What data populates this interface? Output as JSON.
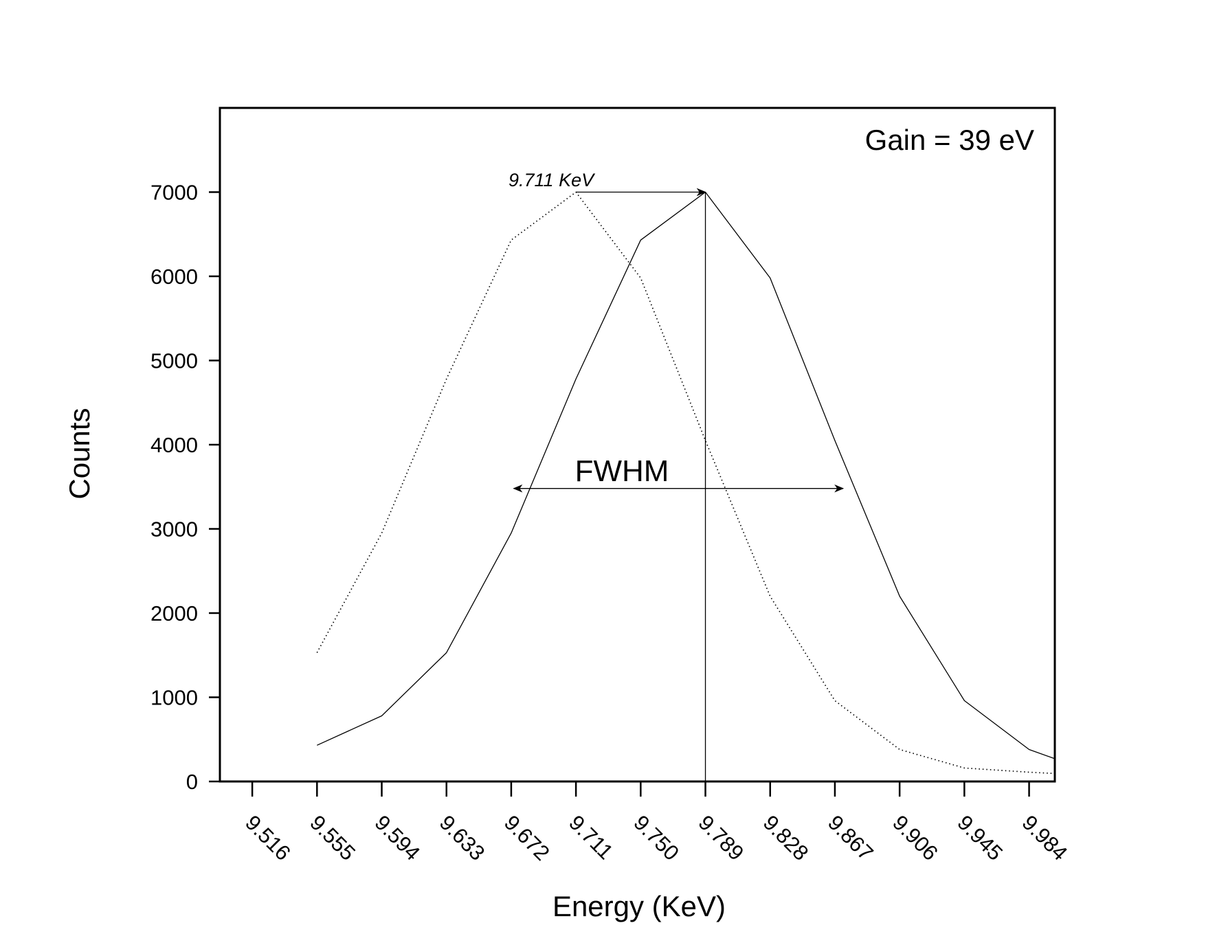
{
  "chart_data": {
    "type": "line",
    "xlabel": "Energy (KeV)",
    "ylabel": "Counts",
    "xlim": [
      9.4965,
      9.9995
    ],
    "ylim": [
      0,
      8000
    ],
    "x_ticks": [
      "9.516",
      "9.555",
      "9.594",
      "9.633",
      "9.672",
      "9.711",
      "9.750",
      "9.789",
      "9.828",
      "9.867",
      "9.906",
      "9.945",
      "9.984"
    ],
    "y_ticks": [
      "0",
      "1000",
      "2000",
      "3000",
      "4000",
      "5000",
      "6000",
      "7000"
    ],
    "grid": false,
    "series": [
      {
        "style": "dotted",
        "x": [
          9.555,
          9.594,
          9.633,
          9.672,
          9.711,
          9.75,
          9.789,
          9.828,
          9.867,
          9.906,
          9.945,
          9.984,
          9.9995
        ],
        "values": [
          1530,
          2950,
          4780,
          6430,
          7000,
          5980,
          4050,
          2200,
          960,
          380,
          160,
          110,
          95
        ]
      },
      {
        "style": "solid",
        "x": [
          9.555,
          9.594,
          9.633,
          9.672,
          9.711,
          9.75,
          9.789,
          9.828,
          9.867,
          9.906,
          9.945,
          9.984,
          9.9995
        ],
        "values": [
          430,
          780,
          1530,
          2950,
          4780,
          6430,
          7000,
          5980,
          4050,
          2200,
          960,
          380,
          270
        ]
      }
    ],
    "annotations": {
      "gain_text": "Gain = 39 eV",
      "peak_text": "9.711 KeV",
      "fwhm_text": "FWHM",
      "peak_arrow": {
        "x_from": 9.711,
        "x_to": 9.789,
        "y": 7000
      },
      "peak_line_x": 9.789,
      "fwhm_arrow": {
        "x_from": 9.6735,
        "x_to": 9.872,
        "y": 3480
      }
    }
  }
}
